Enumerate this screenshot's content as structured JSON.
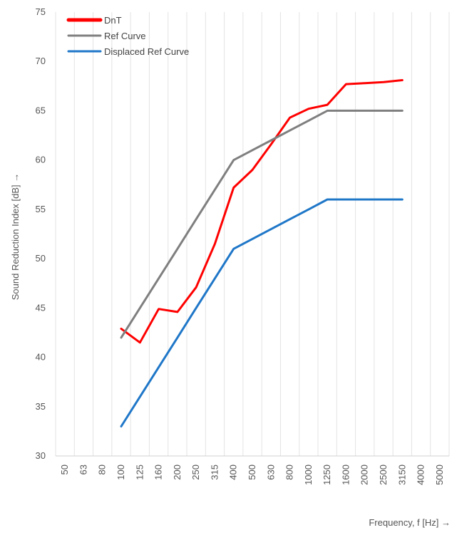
{
  "chart_data": {
    "type": "line",
    "xlabel": "Frequency, f [Hz] →",
    "ylabel": "Sound Reduction Index [dB] →",
    "categories": [
      "50",
      "63",
      "80",
      "100",
      "125",
      "160",
      "200",
      "250",
      "315",
      "400",
      "500",
      "630",
      "800",
      "1000",
      "1250",
      "1600",
      "2000",
      "2500",
      "3150",
      "4000",
      "5000"
    ],
    "ylim": [
      30,
      75
    ],
    "yticks": [
      30,
      35,
      40,
      45,
      50,
      55,
      60,
      65,
      70,
      75
    ],
    "grid": "vertical",
    "legend_position": "top-left",
    "series": [
      {
        "name": "DnT",
        "color": "#ff0000",
        "values": [
          null,
          null,
          null,
          42.9,
          41.5,
          44.9,
          44.6,
          47.1,
          51.5,
          57.2,
          59.0,
          61.6,
          64.3,
          65.2,
          65.6,
          67.7,
          67.8,
          67.9,
          68.1,
          null,
          null
        ]
      },
      {
        "name": "Ref Curve",
        "color": "#7f7f7f",
        "values": [
          null,
          null,
          null,
          42,
          45,
          48,
          51,
          54,
          57,
          60,
          61,
          62,
          63,
          64,
          65,
          65,
          65,
          65,
          65,
          null,
          null
        ]
      },
      {
        "name": "Displaced Ref Curve",
        "color": "#1f77c8",
        "values": [
          null,
          null,
          null,
          33,
          36,
          39,
          42,
          45,
          48,
          51,
          52,
          53,
          54,
          55,
          56,
          56,
          56,
          56,
          56,
          null,
          null
        ]
      }
    ]
  }
}
